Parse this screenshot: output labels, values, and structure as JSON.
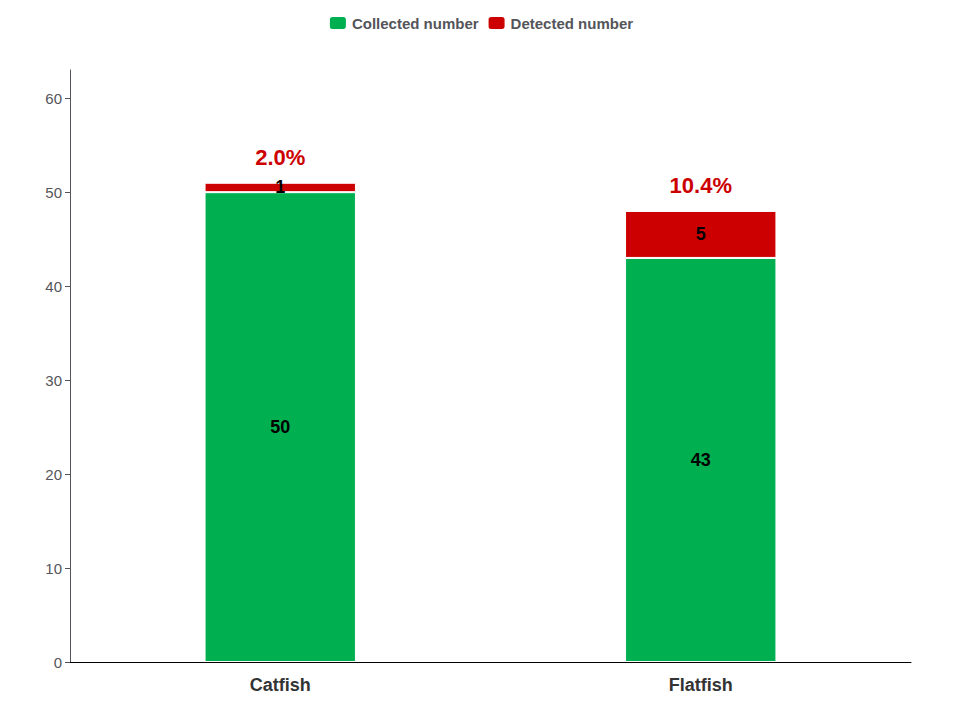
{
  "chart_data": {
    "type": "bar",
    "stacked": true,
    "categories": [
      "Catfish",
      "Flatfish"
    ],
    "series": [
      {
        "name": "Collected number",
        "color": "#00b050",
        "values": [
          50,
          43
        ]
      },
      {
        "name": "Detected number",
        "color": "#cc0000",
        "values": [
          1,
          5
        ]
      }
    ],
    "annotations": [
      "2.0%",
      "10.4%"
    ],
    "ylim": [
      0,
      63
    ],
    "yticks": [
      0,
      10,
      20,
      30,
      40,
      50,
      60
    ],
    "grid": false,
    "legend": "top",
    "data_labels": true
  }
}
